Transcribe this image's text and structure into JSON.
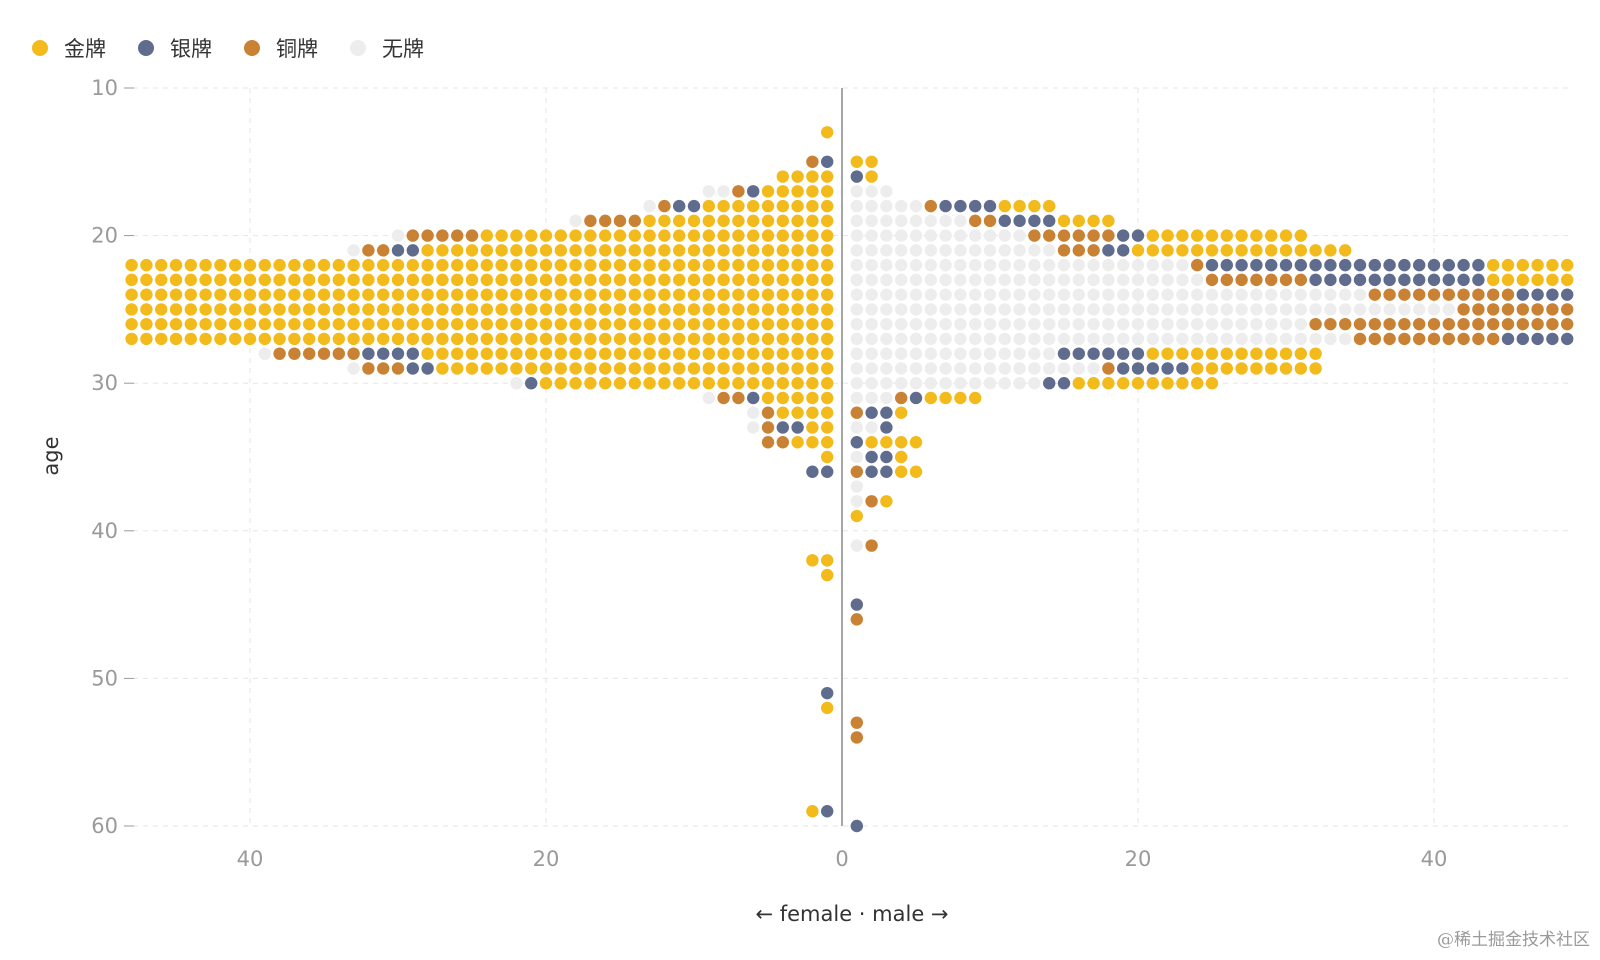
{
  "chart_data": {
    "type": "scatter",
    "style": "dot-pyramid (one dot per athlete, stacked outward from center by sex)",
    "xlabel": "← female · male →",
    "ylabel": "age",
    "ylim": [
      10,
      60
    ],
    "y_inverted": true,
    "y_ticks": [
      10,
      20,
      30,
      40,
      50,
      60
    ],
    "x_ticks": [
      {
        "value": -40,
        "label": "40"
      },
      {
        "value": -20,
        "label": "20"
      },
      {
        "value": 0,
        "label": "0"
      },
      {
        "value": 20,
        "label": "20"
      },
      {
        "value": 40,
        "label": "40"
      }
    ],
    "xlim": [
      -48,
      49
    ],
    "grid": true,
    "legend_position": "top-left",
    "series": [
      {
        "key": "gold",
        "name": "金牌",
        "color": "#F2BA1B"
      },
      {
        "key": "silver",
        "name": "银牌",
        "color": "#5F6C8E"
      },
      {
        "key": "bronze",
        "name": "铜牌",
        "color": "#C98134"
      },
      {
        "key": "none",
        "name": "无牌",
        "color": "#EDEDED"
      }
    ],
    "rows": [
      {
        "age": 13,
        "female": "G",
        "male": ""
      },
      {
        "age": 15,
        "female": "SB",
        "male": "GG"
      },
      {
        "age": 16,
        "female": "GGGG",
        "male": "SG"
      },
      {
        "age": 17,
        "female": "GGGGGSBNN",
        "male": "NNN"
      },
      {
        "age": 18,
        "female": "GGGGGGGGGSSBN",
        "male": "NNNNNBSSSSGGGG"
      },
      {
        "age": 19,
        "female": "GGGGGGGGGGGGGBBBBN",
        "male": "NNNNNNNNBBSSSSGGGG"
      },
      {
        "age": 20,
        "female": "GGGGGGGGGGGGGGGGGGGGGGGGBBBBBN",
        "male": "NNNNNNNNNNNNBBBBBBSSGGGGGGGGGGG"
      },
      {
        "age": 21,
        "female": "GGGGGGGGGGGGGGGGGGGGGGGGGGGGSSBBN",
        "male": "NNNNNNNNNNNNNNBBBSSGGGGGGGGGGGGGGG"
      },
      {
        "age": 22,
        "female": "GGGGGGGGGGGGGGGGGGGGGGGGGGGGGGGGGGGGGGGGGGGGGGGGGSSSSSSSSSSBBBBBBBBBBBBBBBBBBBNNNNNNNNNNN",
        "male": "NNNNNNNNNNNNNNNNNNNNNNNBSSSSSSSSSSSSSSSSSSSGGGGGGGGGGGGGGGGGGGGGGGGGGGGG"
      },
      {
        "age": 23,
        "female": "GGGGGGGGGGGGGGGGGGGGGGGGGGGGGGGGGGGGGGGGGGGGGGGGGGGGGGSSSSSSSSSSSBBBBBBBBBBBBBBBBBBBBNNNNNNNNNN",
        "male": "NNNNNNNNNNNNNNNNNNNNNNNNBBBBBBBSSSSSSSSSSSSGGGGGGGGGGGGGGGGGGGGGGGGGGGGGGGGG"
      },
      {
        "age": 24,
        "female": "GGGGGGGGGGGGGGGGGGGGGGGGGGGGGGGGGGGGGGGGGGGGGGGGGGGGGGGSSSSSSSSSSSSSSSSSSSBBBBBBBBBBBBBBBBBNNNNNNNNNNNNN",
        "male": "NNNNNNNNNNNNNNNNNNNNNNNNNNNNNNNNNNNBBBBBBBBBBSSSSSSSSSSSSSSSSSGGGGGGGGGGGGGGGGGGGGGGGGGGGGGGGGGGGGGGG"
      },
      {
        "age": 25,
        "female": "GGGGGGGGGGGGGGGGGGGGGGGGGGGGGGGGGGGGGGGGGGGGGGGGGGGGGGGGGGGSSSSSSSSSSSSSSSSSBBBBBBBBBBBBBBBBNNNNNNNNNNNNNNN",
        "male": "NNNNNNNNNNNNNNNNNNNNNNNNNNNNNNNNNNNNNNNNNBBBBBBBBBBBBBBBBSSSSSSSSSSSSSSSSSSSSSGGGGGGGGGGGGGGGGGGGGGGGGGGGG"
      },
      {
        "age": 26,
        "female": "GGGGGGGGGGGGGGGGGGGGGGGGGGGGGGGGGGGGGGGGGGGGGGGGGGGGGGGGGGGGGGGGGGGGGGGGGGGGSSSSSSSSSSSSSSSSSSBBBBBBBBBBBBBBBBBBBNNNNNNNNNNNNNNNNN",
        "male": "NNNNNNNNNNNNNNNNNNNNNNNNNNNNNNNBBBBBBBBBBBBBBBBBBBBSSSSSSSSSSSSSSSSSSSSSSGGGGGGGGGGGGGGGGGGGGGGGGGGGGGGGGGGG"
      },
      {
        "age": 27,
        "female": "GGGGGGGGGGGGGGGGGGGGGGGGGGGGGGGGGGGGGGGGGGGGGGGGGGGGGGSSSSSSSSSSSBBBBBBBBBBBBBBBBBBBBBBBBBNNNNNNNNNNNN",
        "male": "NNNNNNNNNNNNNNNNNNNNNNNNNNNNNNNNNNBBBBBBBBBBSSSSSSSSSSSSSSSSSSSGGGGGGGGGGGGGGGGGGGGGGGGGGGGGGGG"
      },
      {
        "age": 28,
        "female": "GGGGGGGGGGGGGGGGGGGGGGGGGGGGSSSSBBBBBBN",
        "male": "NNNNNNNNNNNNNNSSSSSSGGGGGGGGGGGG"
      },
      {
        "age": 29,
        "female": "GGGGGGGGGGGGGGGGGGGGGGGGGGGSSBBBN",
        "male": "NNNNNNNNNNNNNNNNNBSSSSSGGGGGGGGG"
      },
      {
        "age": 30,
        "female": "GGGGGGGGGGGGGGGGGGGGSN",
        "male": "NNNNNNNNNNNNNSSGGGGGGGGGG"
      },
      {
        "age": 31,
        "female": "GGGGGSBBN",
        "male": "NNNBSGGGG"
      },
      {
        "age": 32,
        "female": "GGGGBN",
        "male": "BSSG"
      },
      {
        "age": 33,
        "female": "GGSSBN",
        "male": "NNS"
      },
      {
        "age": 34,
        "female": "GGGBB",
        "male": "SGGGG"
      },
      {
        "age": 35,
        "female": "G",
        "male": "NSSG"
      },
      {
        "age": 36,
        "female": "SS",
        "male": "BSSGG"
      },
      {
        "age": 37,
        "female": "",
        "male": "N"
      },
      {
        "age": 38,
        "female": "",
        "male": "NBG"
      },
      {
        "age": 39,
        "female": "",
        "male": "G"
      },
      {
        "age": 41,
        "female": "",
        "male": "NB"
      },
      {
        "age": 42,
        "female": "GG",
        "male": ""
      },
      {
        "age": 43,
        "female": "G",
        "male": ""
      },
      {
        "age": 45,
        "female": "",
        "male": "S"
      },
      {
        "age": 46,
        "female": "",
        "male": "B"
      },
      {
        "age": 51,
        "female": "S",
        "male": ""
      },
      {
        "age": 52,
        "female": "G",
        "male": ""
      },
      {
        "age": 53,
        "female": "",
        "male": "B"
      },
      {
        "age": 54,
        "female": "",
        "male": "B"
      },
      {
        "age": 59,
        "female": "SG",
        "male": ""
      },
      {
        "age": 60,
        "female": "",
        "male": "S"
      }
    ]
  },
  "watermark": "@稀土掘金技术社区"
}
